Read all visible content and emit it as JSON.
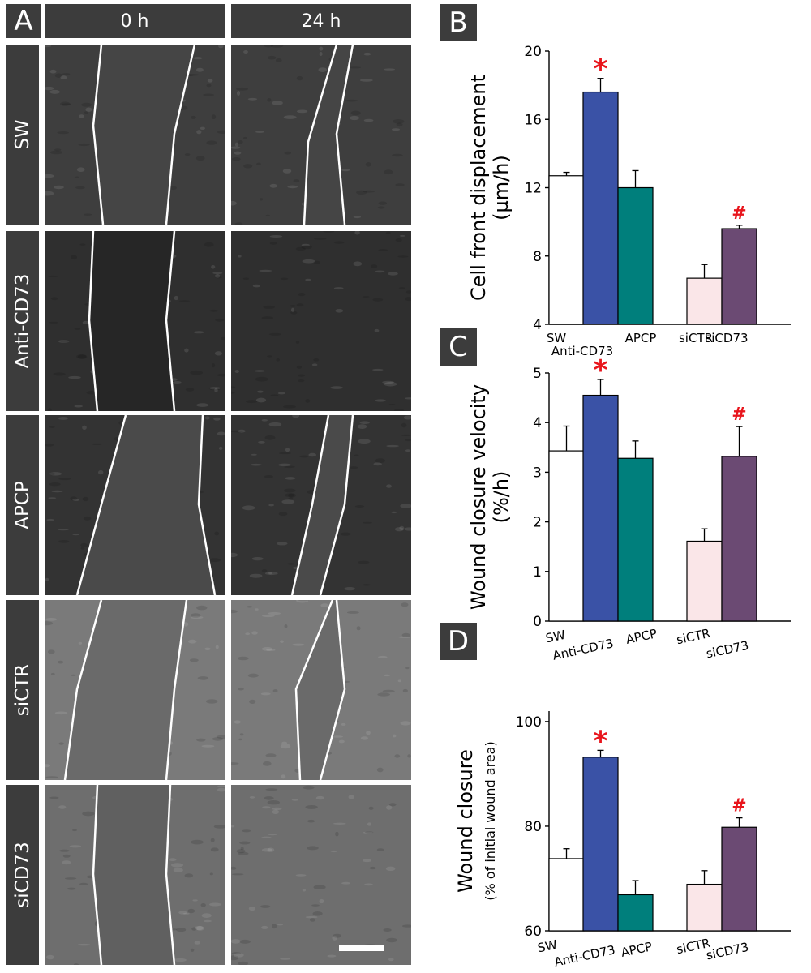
{
  "panel_a": {
    "label": "A",
    "columns": [
      "0 h",
      "24 h"
    ],
    "rows": [
      "SW",
      "Anti-CD73",
      "APCP",
      "siCTR",
      "siCD73"
    ]
  },
  "chart_data": [
    {
      "panel": "B",
      "type": "bar",
      "ylabel": "Cell front displacement (µm/h)",
      "ylim": [
        4,
        20
      ],
      "yticks": [
        4,
        8,
        12,
        16,
        20
      ],
      "categories": [
        "SW",
        "Anti-CD73",
        "APCP",
        "siCTR",
        "siCD73"
      ],
      "values": [
        12.7,
        17.6,
        12.0,
        6.7,
        9.6
      ],
      "errors": [
        0.2,
        0.8,
        1.0,
        0.8,
        0.2
      ],
      "annotations": [
        "",
        "*",
        "",
        "",
        "#"
      ],
      "colors": [
        "#ffffff",
        "#3a52a6",
        "#007f7c",
        "#fae6e8",
        "#6b4a73"
      ]
    },
    {
      "panel": "C",
      "type": "bar",
      "ylabel": "Wound closure velocity (%/h)",
      "ylim": [
        0,
        5
      ],
      "yticks": [
        0,
        1,
        2,
        3,
        4,
        5
      ],
      "categories": [
        "SW",
        "Anti-CD73",
        "APCP",
        "siCTR",
        "siCD73"
      ],
      "values": [
        3.43,
        4.55,
        3.28,
        1.61,
        3.32
      ],
      "errors": [
        0.5,
        0.32,
        0.35,
        0.25,
        0.6
      ],
      "annotations": [
        "",
        "*",
        "",
        "",
        "#"
      ],
      "colors": [
        "#ffffff",
        "#3a52a6",
        "#007f7c",
        "#fae6e8",
        "#6b4a73"
      ]
    },
    {
      "panel": "D",
      "type": "bar",
      "ylabel": "Wound closure (% of initial wound area)",
      "ylim": [
        60,
        102
      ],
      "yticks": [
        60,
        80,
        100
      ],
      "categories": [
        "SW",
        "Anti-CD73",
        "APCP",
        "siCTR",
        "siCD73"
      ],
      "values": [
        73.8,
        93.2,
        66.9,
        68.9,
        79.8
      ],
      "errors": [
        1.9,
        1.3,
        2.7,
        2.6,
        1.8
      ],
      "annotations": [
        "",
        "*",
        "",
        "",
        "#"
      ],
      "colors": [
        "#ffffff",
        "#3a52a6",
        "#007f7c",
        "#fae6e8",
        "#6b4a73"
      ]
    }
  ],
  "style": {
    "annotation_color": "#e8151c",
    "label_bg": "#3c3c3c"
  }
}
